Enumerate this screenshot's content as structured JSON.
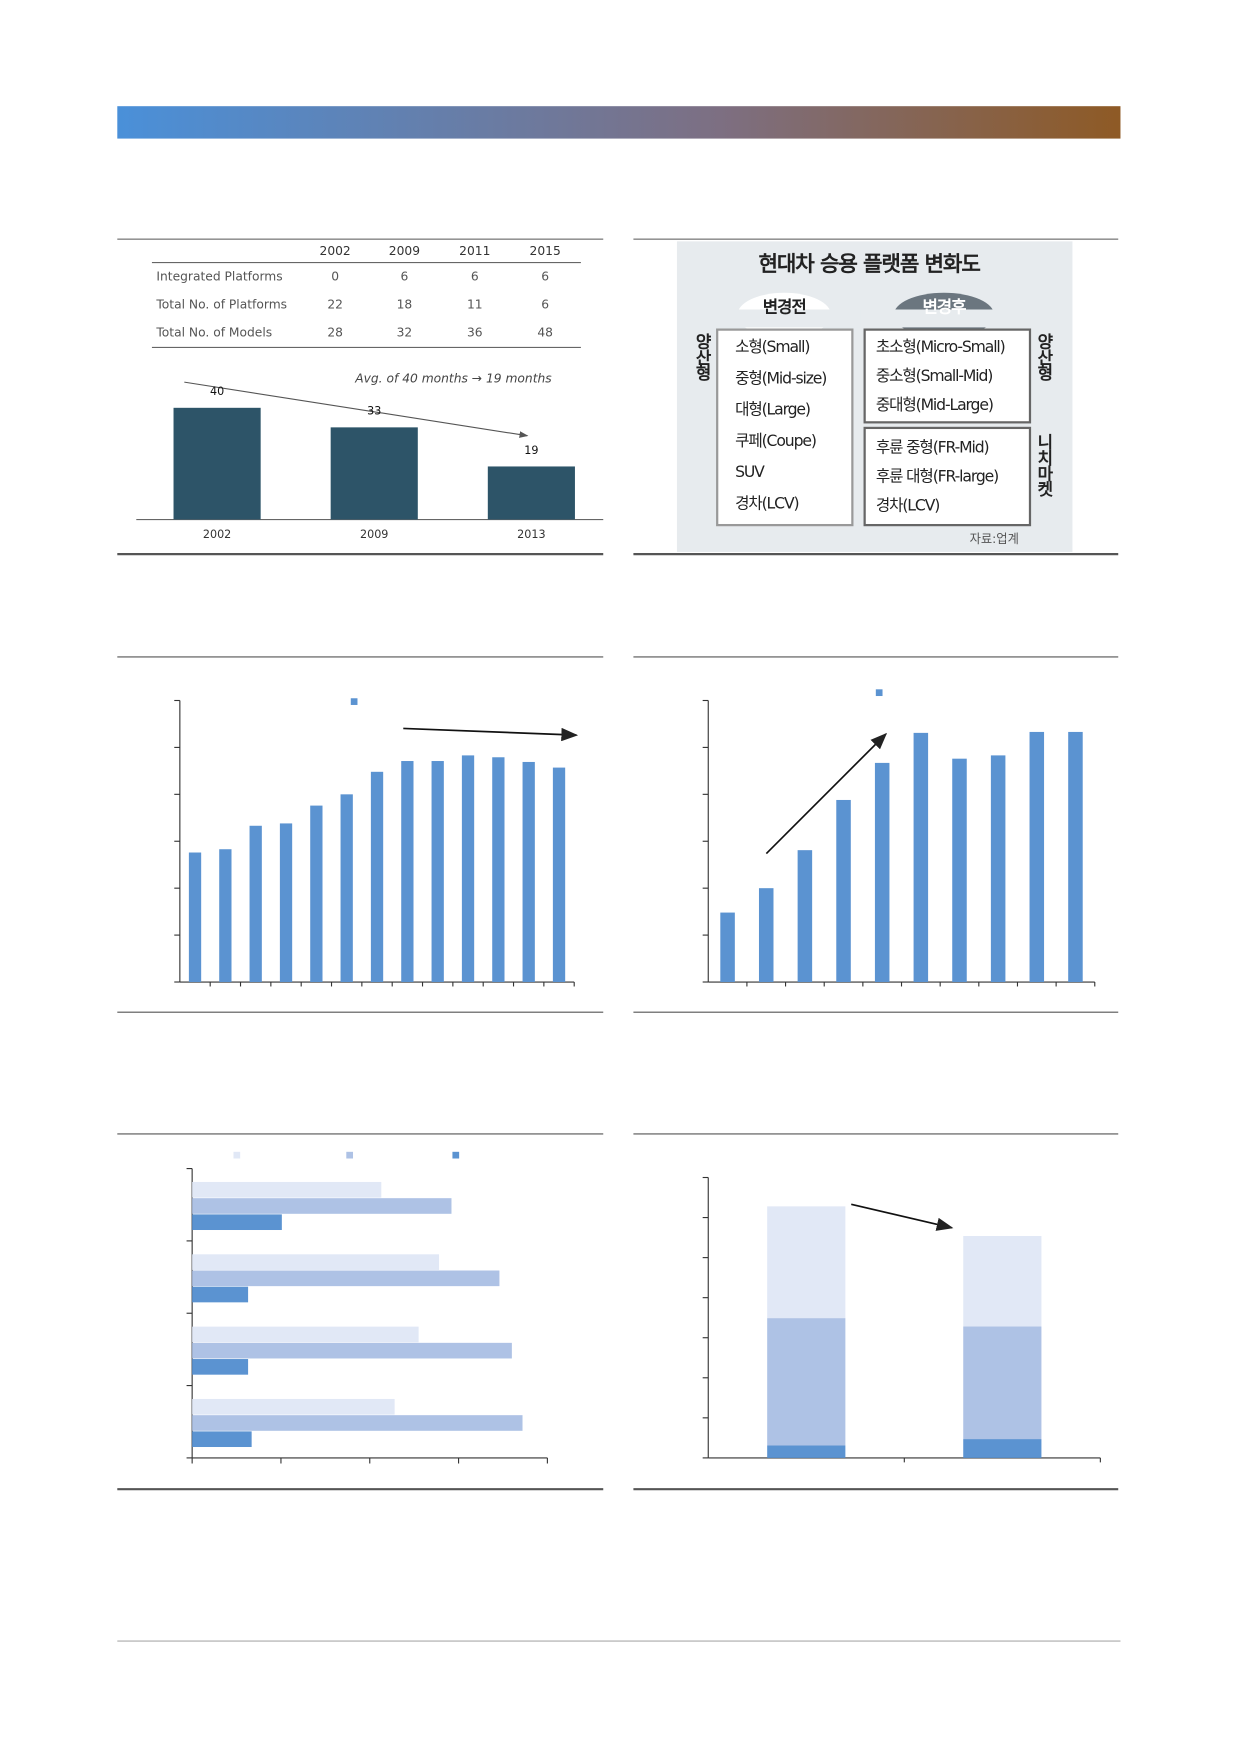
{
  "table": {
    "columns": [
      "2002",
      "2009",
      "2011",
      "2015"
    ],
    "rows": [
      [
        "Integrated Platforms",
        0,
        6,
        6,
        6
      ],
      [
        "Total No. of Platforms",
        22,
        18,
        11,
        6
      ],
      [
        "Total No. of Models",
        28,
        32,
        36,
        48
      ]
    ]
  },
  "diagram": {
    "title": "현대차 승용 플랫폼 변화도",
    "before": "변경전",
    "after": "변경후",
    "left_label": "양산형",
    "right_label": "양산형",
    "niche_label": "니치마켓",
    "before_items": [
      "소형(Small)",
      "중형(Mid-size)",
      "대형(Large)",
      "쿠페(Coupe)",
      "SUV",
      "경차(LCV)"
    ],
    "after_mass": [
      "초소형(Micro-Small)",
      "중소형(Small-Mid)",
      "중대형(Mid-Large)"
    ],
    "after_niche": [
      "후륜 중형(FR-Mid)",
      "후륜 대형(FR-large)",
      "경차(LCV)"
    ],
    "source": "자료:업계"
  },
  "chart_data": [
    {
      "type": "bar",
      "categories": [
        "2002",
        "2009",
        "2013"
      ],
      "values": [
        40,
        33,
        19
      ],
      "color": "#2d5468",
      "ylim": [
        0,
        40
      ],
      "annotation": "Avg. of 40 months → 19 months"
    },
    {
      "type": "bar",
      "categories": [
        null,
        null,
        null,
        null,
        null,
        null,
        null,
        null,
        null,
        null,
        null,
        null,
        null
      ],
      "values": [
        2.76,
        2.83,
        3.33,
        3.38,
        3.76,
        4.0,
        4.48,
        4.71,
        4.71,
        4.83,
        4.79,
        4.69,
        4.57
      ],
      "color": "#5b93d1",
      "ylim": [
        0,
        6
      ],
      "yticks": [
        0,
        1,
        2,
        3,
        4,
        5,
        6
      ]
    },
    {
      "type": "bar",
      "categories": [
        null,
        null,
        null,
        null,
        null,
        null,
        null,
        null,
        null,
        null
      ],
      "values": [
        1.48,
        2.0,
        2.81,
        3.88,
        4.67,
        5.31,
        4.76,
        4.83,
        5.33,
        5.33
      ],
      "color": "#5b93d1",
      "ylim": [
        0,
        6
      ],
      "yticks": [
        0,
        1,
        2,
        3,
        4,
        5,
        6
      ]
    },
    {
      "type": "hbar",
      "categories": [
        null,
        null,
        null,
        null
      ],
      "series": [
        {
          "color": "#e1e8f6",
          "values": [
            2.13,
            2.78,
            2.55,
            2.28
          ]
        },
        {
          "color": "#aec2e5",
          "values": [
            2.92,
            3.46,
            3.6,
            3.72
          ]
        },
        {
          "color": "#5b93d1",
          "values": [
            1.01,
            0.63,
            0.63,
            0.67
          ]
        }
      ],
      "xlim": [
        0,
        4
      ],
      "xticks": [
        0,
        1,
        2,
        3,
        4
      ]
    },
    {
      "type": "stacked_bar",
      "categories": [
        null,
        null
      ],
      "series": [
        {
          "color": "#5b93d1",
          "values": [
            0.31,
            0.47
          ]
        },
        {
          "color": "#aec2e5",
          "values": [
            3.18,
            2.81
          ]
        },
        {
          "color": "#e1e8f6",
          "values": [
            2.79,
            2.26
          ]
        }
      ],
      "ylim": [
        0,
        7
      ],
      "yticks": [
        0,
        1,
        2,
        3,
        4,
        5,
        6,
        7
      ]
    }
  ]
}
